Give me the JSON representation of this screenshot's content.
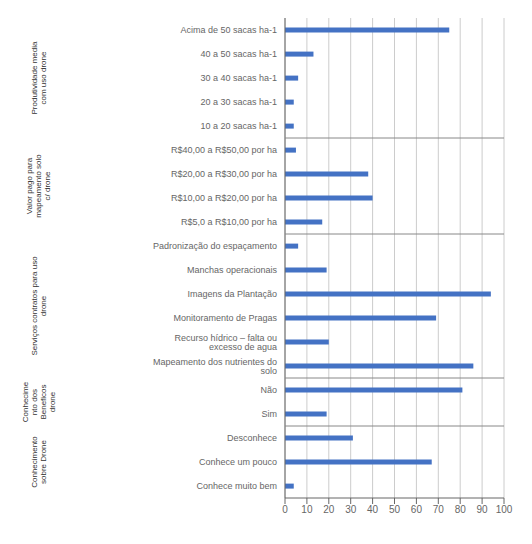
{
  "chart_data": {
    "type": "bar",
    "orientation": "horizontal",
    "categories": [
      "Acima de 50 sacas ha-1",
      "40 a 50 sacas ha-1",
      "30 a 40 sacas ha-1",
      "20 a 30 sacas ha-1",
      "10 a 20 sacas ha-1",
      "R$40,00 a R$50,00 por ha",
      "R$20,00 a R$30,00 por ha",
      "R$10,00 a R$20,00 por ha",
      "R$5,0 a R$10,00 por ha",
      "Padronização do espaçamento",
      "Manchas operacionais",
      "Imagens da Plantação",
      "Monitoramento de Pragas",
      "Recurso hídrico – falta ou excesso de agua",
      "Mapeamento dos nutrientes do solo",
      "Não",
      "Sim",
      "Desconhece",
      "Conhece um pouco",
      "Conhece muito bem"
    ],
    "values": [
      75,
      13,
      6,
      4,
      4,
      5,
      38,
      40,
      17,
      6,
      19,
      94,
      69,
      20,
      86,
      81,
      19,
      31,
      67,
      4
    ],
    "color": "#4472C4",
    "xlim": [
      0,
      100
    ],
    "xticks": [
      0,
      10,
      20,
      30,
      40,
      50,
      60,
      70,
      80,
      90,
      100
    ],
    "grid": true,
    "groups": [
      {
        "label": "Produtividade media\ncom uso drone",
        "categories": [
          "Acima de 50 sacas ha-1",
          "40 a 50 sacas ha-1",
          "30 a 40 sacas ha-1",
          "20 a 30 sacas ha-1",
          "10 a 20 sacas ha-1"
        ]
      },
      {
        "label": "Valor pago para\nmapeamento solo\nc/ drone",
        "categories": [
          "R$40,00 a R$50,00 por ha",
          "R$20,00 a R$30,00 por ha",
          "R$10,00 a R$20,00 por ha",
          "R$5,0 a R$10,00 por ha"
        ]
      },
      {
        "label": "Serviços contratos para uso\ndrone",
        "categories": [
          "Padronização do espaçamento",
          "Manchas operacionais",
          "Imagens da Plantação",
          "Monitoramento de Pragas",
          "Recurso hídrico – falta ou excesso de agua",
          "Mapeamento dos nutrientes do solo"
        ]
      },
      {
        "label": "Conhecime\nnto dos\nBeneficos\ndrone",
        "categories": [
          "Não",
          "Sim"
        ]
      },
      {
        "label": "Conhecimento\nsobre Drone",
        "categories": [
          "Desconhece",
          "Conhece um pouco",
          "Conhece muito bem"
        ]
      }
    ]
  }
}
